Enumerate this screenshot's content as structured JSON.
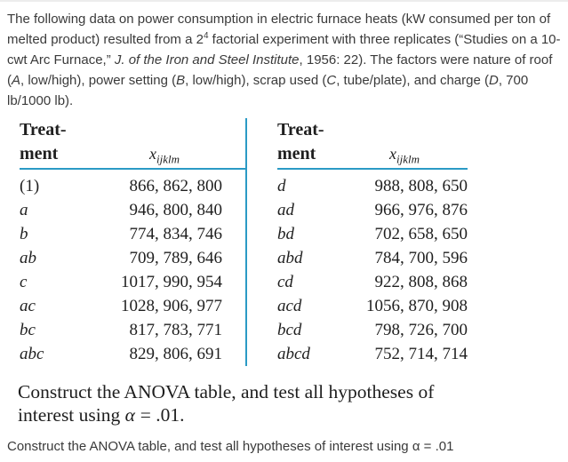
{
  "colors": {
    "accent_teal": "#2b9ac5"
  },
  "intro": {
    "segments": [
      {
        "text": "The following data on power consumption in electric furnace heats (kW consumed per ton of"
      },
      {
        "br": true
      },
      {
        "text": "melted product) resulted from a 2"
      },
      {
        "text": "4",
        "sup": true
      },
      {
        "text": " factorial experiment with three replicates (“Studies on a 10-"
      },
      {
        "br": true
      },
      {
        "text": "cwt Arc Furnace,” "
      },
      {
        "text": "J. of the Iron and Steel Institute",
        "italic": true
      },
      {
        "text": ", 1956: 22). The factors were nature of roof"
      },
      {
        "br": true
      },
      {
        "text": "("
      },
      {
        "text": "A",
        "italic": true
      },
      {
        "text": ", low/high), power setting ("
      },
      {
        "text": "B",
        "italic": true
      },
      {
        "text": ", low/high), scrap used ("
      },
      {
        "text": "C",
        "italic": true
      },
      {
        "text": ", tube/plate), and charge ("
      },
      {
        "text": "D",
        "italic": true
      },
      {
        "text": ", 700"
      },
      {
        "br": true
      },
      {
        "text": "lb/1000 lb)."
      }
    ]
  },
  "table": {
    "header": {
      "treatment_line1": "Treat-",
      "treatment_line2": "ment",
      "x_var": "x",
      "x_sub": "ijklm"
    },
    "left_rows": [
      {
        "treatment": "(1)",
        "italic": false,
        "values": "866, 862, 800"
      },
      {
        "treatment": "a",
        "italic": true,
        "values": "946, 800, 840"
      },
      {
        "treatment": "b",
        "italic": true,
        "values": "774, 834, 746"
      },
      {
        "treatment": "ab",
        "italic": true,
        "values": "709, 789, 646"
      },
      {
        "treatment": "c",
        "italic": true,
        "values": "1017, 990, 954"
      },
      {
        "treatment": "ac",
        "italic": true,
        "values": "1028, 906, 977"
      },
      {
        "treatment": "bc",
        "italic": true,
        "values": "817, 783, 771"
      },
      {
        "treatment": "abc",
        "italic": true,
        "values": "829, 806, 691"
      }
    ],
    "right_rows": [
      {
        "treatment": "d",
        "italic": true,
        "values": "988, 808, 650"
      },
      {
        "treatment": "ad",
        "italic": true,
        "values": "966, 976, 876"
      },
      {
        "treatment": "bd",
        "italic": true,
        "values": "702, 658, 650"
      },
      {
        "treatment": "abd",
        "italic": true,
        "values": "784, 700, 596"
      },
      {
        "treatment": "cd",
        "italic": true,
        "values": "922, 808, 868"
      },
      {
        "treatment": "acd",
        "italic": true,
        "values": "1056, 870, 908"
      },
      {
        "treatment": "bcd",
        "italic": true,
        "values": "798, 726, 700"
      },
      {
        "treatment": "abcd",
        "italic": true,
        "values": "752, 714, 714"
      }
    ]
  },
  "question": {
    "segments": [
      {
        "text": "Construct the ANOVA table, and test all hypotheses of"
      },
      {
        "br": true
      },
      {
        "text": "interest using "
      },
      {
        "text": "α",
        "italic": true
      },
      {
        "text": " = .01."
      }
    ]
  },
  "footer_line": "Construct the ANOVA table, and test all hypotheses of interest using α = .01"
}
